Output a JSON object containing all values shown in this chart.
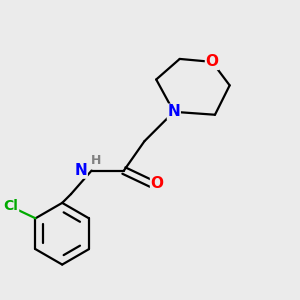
{
  "bg_color": "#ebebeb",
  "bond_color": "#000000",
  "bond_width": 1.6,
  "atom_colors": {
    "N": "#0000ff",
    "O": "#ff0000",
    "Cl": "#00aa00",
    "C": "#000000",
    "H": "#808080"
  },
  "font_size": 10,
  "fig_size": [
    3.0,
    3.0
  ],
  "dpi": 100,
  "xlim": [
    0,
    10
  ],
  "ylim": [
    0,
    10
  ]
}
